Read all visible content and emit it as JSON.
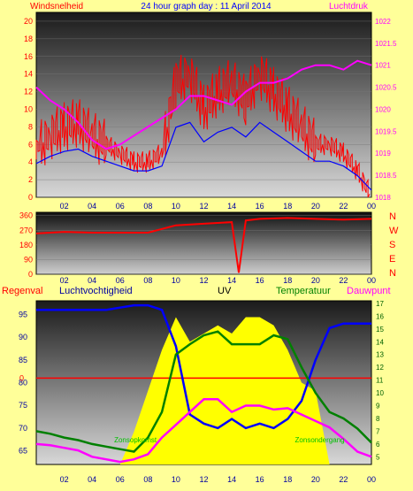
{
  "colors": {
    "background": "#ffff99",
    "wind": "#ff0000",
    "pressure": "#ff00ff",
    "gust": "#0000ff",
    "humidity": "#0000ff",
    "uv": "#ffff00",
    "temperature": "#008000",
    "dewpoint": "#ff00ff",
    "solar": "#808080",
    "rain": "#ff0000"
  },
  "header": {
    "left": "Windsnelheid",
    "center": "24 hour graph day : 11 April 2014",
    "right": "Luchtdruk"
  },
  "bottom_header": {
    "rain": "Regenval",
    "humidity": "Luchtvochtigheid",
    "uv": "UV",
    "temperature": "Temperatuur",
    "dewpoint": "Dauwpunt"
  },
  "sun_labels": {
    "sunrise": "Zonsopkomst",
    "sunset": "Zonsondergang"
  },
  "compass": [
    "N",
    "W",
    "S",
    "E",
    "N"
  ],
  "chart_data": [
    {
      "type": "line",
      "title": "24 hour graph day : 11 April 2014",
      "xlabel": "",
      "x_ticks": [
        "02",
        "04",
        "06",
        "08",
        "10",
        "12",
        "14",
        "16",
        "18",
        "20",
        "22",
        "00"
      ],
      "y_left": {
        "label": "Windsnelheid",
        "ticks": [
          0,
          2,
          4,
          6,
          8,
          10,
          12,
          14,
          16,
          18,
          20
        ],
        "range": [
          0,
          21
        ]
      },
      "y_right": {
        "label": "Luchtdruk",
        "ticks": [
          1018,
          1018.5,
          1019,
          1019.5,
          1020,
          1020.5,
          1021,
          1021.5,
          1022
        ],
        "range": [
          1018,
          1022.2
        ]
      },
      "x": [
        0,
        1,
        2,
        3,
        4,
        5,
        6,
        7,
        8,
        9,
        10,
        11,
        12,
        13,
        14,
        15,
        16,
        17,
        18,
        19,
        20,
        21,
        22,
        23,
        24
      ],
      "series": [
        {
          "name": "Windsnelheid",
          "axis": "left",
          "values": [
            5.5,
            7,
            8,
            8.5,
            7,
            6,
            5,
            4,
            4,
            5,
            13,
            14,
            10,
            12,
            13,
            11,
            14,
            12,
            10,
            8,
            6,
            6,
            5,
            3,
            0
          ]
        },
        {
          "name": "Luchtdruk",
          "axis": "right",
          "values": [
            1020.5,
            1020.2,
            1020.0,
            1019.7,
            1019.3,
            1019.1,
            1019.2,
            1019.4,
            1019.6,
            1019.8,
            1020.0,
            1020.3,
            1020.3,
            1020.2,
            1020.1,
            1020.4,
            1020.6,
            1020.6,
            1020.7,
            1020.9,
            1021.0,
            1021.0,
            1020.9,
            1021.1,
            1021.0
          ]
        }
      ]
    },
    {
      "type": "line",
      "title": "",
      "x_ticks": [
        "02",
        "04",
        "06",
        "08",
        "10",
        "12",
        "14",
        "16",
        "18",
        "20",
        "22",
        "00"
      ],
      "y_left": {
        "ticks": [
          0,
          90,
          180,
          270,
          360
        ],
        "range": [
          0,
          380
        ]
      },
      "compass_right": [
        "N",
        "W",
        "S",
        "E",
        "N"
      ],
      "x": [
        0,
        2,
        4,
        6,
        8,
        10,
        12,
        14,
        14.5,
        15,
        16,
        18,
        20,
        22,
        24
      ],
      "series": [
        {
          "name": "wind direction",
          "values": [
            250,
            260,
            255,
            255,
            255,
            300,
            310,
            320,
            10,
            330,
            340,
            345,
            340,
            335,
            340
          ]
        }
      ]
    },
    {
      "type": "line",
      "title": "",
      "x_ticks": [
        "02",
        "04",
        "06",
        "08",
        "10",
        "12",
        "14",
        "16",
        "18",
        "20",
        "22",
        "00"
      ],
      "y_left": {
        "label": "Luchtvochtigheid",
        "ticks": [
          65,
          70,
          75,
          80,
          85,
          90,
          95
        ],
        "range": [
          62,
          98
        ]
      },
      "y_right": {
        "label": "Temperatuur",
        "ticks": [
          5,
          6,
          7,
          8,
          9,
          10,
          11,
          12,
          13,
          14,
          15,
          16,
          17
        ],
        "range": [
          4.4,
          17.2
        ]
      },
      "x": [
        0,
        1,
        2,
        3,
        4,
        5,
        6,
        7,
        8,
        9,
        10,
        11,
        12,
        13,
        14,
        15,
        16,
        17,
        18,
        19,
        20,
        21,
        22,
        23,
        24
      ],
      "series": [
        {
          "name": "Luchtvochtigheid",
          "axis": "left",
          "values": [
            96,
            96,
            96,
            96,
            96,
            96,
            96.5,
            97,
            97,
            96,
            88,
            73,
            71,
            70,
            72,
            70,
            71,
            70,
            72,
            76,
            85,
            92,
            93,
            93,
            93
          ]
        },
        {
          "name": "Temperatuur",
          "axis": "right",
          "values": [
            7,
            6.8,
            6.5,
            6.3,
            6,
            5.8,
            5.6,
            5.4,
            6.5,
            8.5,
            13,
            13.8,
            14.5,
            14.8,
            13.8,
            13.8,
            13.8,
            14.5,
            14.2,
            12,
            10,
            8.5,
            8,
            7.2,
            6.1
          ]
        },
        {
          "name": "Dauwpunt",
          "axis": "right",
          "values": [
            6,
            5.9,
            5.7,
            5.5,
            5,
            4.8,
            4.6,
            4.8,
            5.2,
            6.5,
            7.5,
            8.5,
            9.5,
            9.5,
            8.5,
            9,
            9,
            8.7,
            8.8,
            8.3,
            7.8,
            7.3,
            6.4,
            5.4,
            5
          ]
        },
        {
          "name": "UV",
          "axis": "none",
          "values": [
            0,
            0,
            0,
            0,
            0,
            0,
            0,
            0.2,
            0.45,
            0.7,
            0.9,
            0.75,
            0.8,
            0.85,
            0.8,
            0.9,
            0.9,
            0.85,
            0.7,
            0.5,
            0.45,
            0,
            0,
            0,
            0
          ]
        },
        {
          "name": "Regenval",
          "axis": "left",
          "values": [
            81,
            81,
            81,
            81,
            81,
            81,
            81,
            81,
            81,
            81,
            81,
            81,
            81,
            81,
            81,
            81,
            81,
            81,
            81,
            81,
            81,
            81,
            81,
            81,
            81
          ]
        }
      ]
    }
  ]
}
